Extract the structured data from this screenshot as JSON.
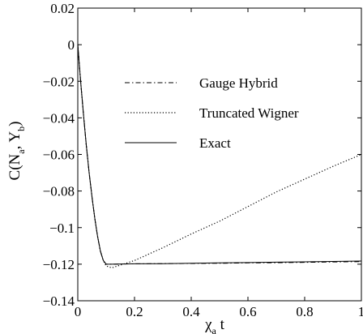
{
  "chart_data": {
    "type": "line",
    "title": "",
    "xlabel": {
      "main": "χ",
      "sub": "a",
      "suffix": " t"
    },
    "ylabel": {
      "prefix": "C(N",
      "sub1": "a",
      "mid": ", Y",
      "sub2": "b",
      "suffix": ")"
    },
    "xlim": [
      0,
      1
    ],
    "ylim": [
      -0.14,
      0.02
    ],
    "x_ticks": [
      0,
      0.2,
      0.4,
      0.6,
      0.8,
      1
    ],
    "x_tick_labels": [
      "0",
      "0.2",
      "0.4",
      "0.6",
      "0.8",
      "1"
    ],
    "y_ticks": [
      0.02,
      0,
      -0.02,
      -0.04,
      -0.06,
      -0.08,
      -0.1,
      -0.12,
      -0.14
    ],
    "y_tick_labels": [
      "0.02",
      "0",
      "−0.02",
      "−0.04",
      "−0.06",
      "−0.08",
      "−0.1",
      "−0.12",
      "−0.14"
    ],
    "grid": false,
    "legend_position": "upper-middle",
    "series": [
      {
        "name": "Gauge Hybrid",
        "style": "dashdot",
        "x": [
          0,
          0.01,
          0.02,
          0.03,
          0.04,
          0.05,
          0.06,
          0.07,
          0.08,
          0.09,
          0.1,
          0.12,
          0.2,
          0.3,
          0.4,
          0.5,
          0.6,
          0.7,
          0.8,
          0.9,
          1.0
        ],
        "y": [
          0,
          -0.02,
          -0.038,
          -0.055,
          -0.07,
          -0.083,
          -0.095,
          -0.105,
          -0.113,
          -0.118,
          -0.12,
          -0.12,
          -0.1198,
          -0.1197,
          -0.1196,
          -0.1195,
          -0.1193,
          -0.1192,
          -0.119,
          -0.1188,
          -0.1186
        ]
      },
      {
        "name": "Truncated Wigner",
        "style": "dotted",
        "x": [
          0,
          0.01,
          0.02,
          0.03,
          0.04,
          0.05,
          0.06,
          0.07,
          0.08,
          0.09,
          0.1,
          0.12,
          0.15,
          0.2,
          0.3,
          0.4,
          0.5,
          0.6,
          0.7,
          0.8,
          0.9,
          1.0
        ],
        "y": [
          0,
          -0.02,
          -0.038,
          -0.055,
          -0.07,
          -0.083,
          -0.095,
          -0.105,
          -0.113,
          -0.118,
          -0.121,
          -0.122,
          -0.1205,
          -0.118,
          -0.111,
          -0.1035,
          -0.0965,
          -0.0885,
          -0.0805,
          -0.0735,
          -0.0665,
          -0.06
        ]
      },
      {
        "name": "Exact",
        "style": "solid",
        "x": [
          0,
          0.01,
          0.02,
          0.03,
          0.04,
          0.05,
          0.06,
          0.07,
          0.08,
          0.09,
          0.1,
          0.12,
          0.2,
          0.3,
          0.4,
          0.5,
          0.6,
          0.7,
          0.8,
          0.9,
          1.0
        ],
        "y": [
          0,
          -0.02,
          -0.038,
          -0.055,
          -0.07,
          -0.083,
          -0.095,
          -0.105,
          -0.113,
          -0.118,
          -0.12,
          -0.12,
          -0.1198,
          -0.1197,
          -0.1195,
          -0.1193,
          -0.1191,
          -0.1189,
          -0.1187,
          -0.1185,
          -0.1183
        ]
      }
    ]
  }
}
